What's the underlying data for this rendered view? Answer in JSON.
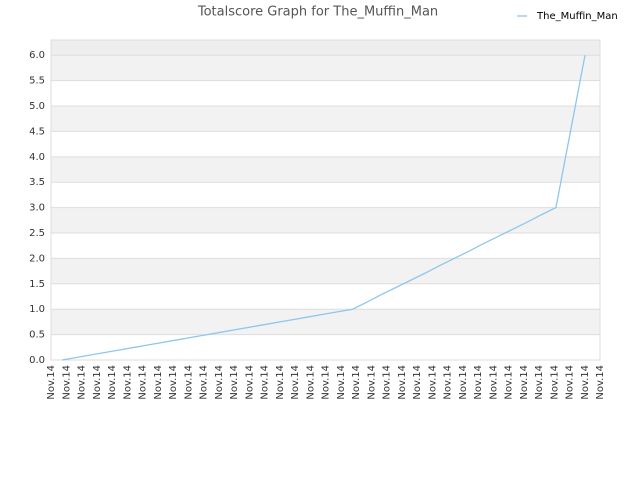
{
  "chart_data": {
    "type": "line",
    "title": "Totalscore Graph for The_Muffin_Man",
    "categories": [
      "Nov.14",
      "Nov.14",
      "Nov.14",
      "Nov.14",
      "Nov.14",
      "Nov.14",
      "Nov.14",
      "Nov.14",
      "Nov.14",
      "Nov.14",
      "Nov.14",
      "Nov.14",
      "Nov.14",
      "Nov.14",
      "Nov.14",
      "Nov.14",
      "Nov.14",
      "Nov.14",
      "Nov.14",
      "Nov.14",
      "Nov.14",
      "Nov.14",
      "Nov.14",
      "Nov.14",
      "Nov.14",
      "Nov.14",
      "Nov.14",
      "Nov.14",
      "Nov.14",
      "Nov.14",
      "Nov.14",
      "Nov.14",
      "Nov.14",
      "Nov.14",
      "Nov.14",
      "Nov.14",
      "Nov.14"
    ],
    "series": [
      {
        "name": "The_Muffin_Man",
        "color": "#8ec6ee",
        "values": [
          0,
          0.05,
          0.1,
          0.15,
          0.2,
          0.25,
          0.3,
          0.35,
          0.4,
          0.45,
          0.5,
          0.55,
          0.6,
          0.65,
          0.7,
          0.75,
          0.8,
          0.85,
          0.9,
          0.95,
          1,
          1.14,
          1.29,
          1.43,
          1.57,
          1.71,
          1.86,
          2,
          2.14,
          2.29,
          2.43,
          2.57,
          2.71,
          2.86,
          3,
          4.5,
          6
        ]
      }
    ],
    "ylim": [
      0,
      6.3
    ],
    "yticks": [
      {
        "value": 0,
        "label": "0.0"
      },
      {
        "value": 0.5,
        "label": "0.5"
      },
      {
        "value": 1,
        "label": "1.0"
      },
      {
        "value": 1.5,
        "label": "1.5"
      },
      {
        "value": 2,
        "label": "2.0"
      },
      {
        "value": 2.5,
        "label": "2.5"
      },
      {
        "value": 3,
        "label": "3.0"
      },
      {
        "value": 3.5,
        "label": "3.5"
      },
      {
        "value": 4,
        "label": "4.0"
      },
      {
        "value": 4.5,
        "label": "4.5"
      },
      {
        "value": 5,
        "label": "5.0"
      },
      {
        "value": 5.5,
        "label": "5.5"
      },
      {
        "value": 6,
        "label": "6.0"
      }
    ],
    "grid": true,
    "legend": "top-right"
  }
}
